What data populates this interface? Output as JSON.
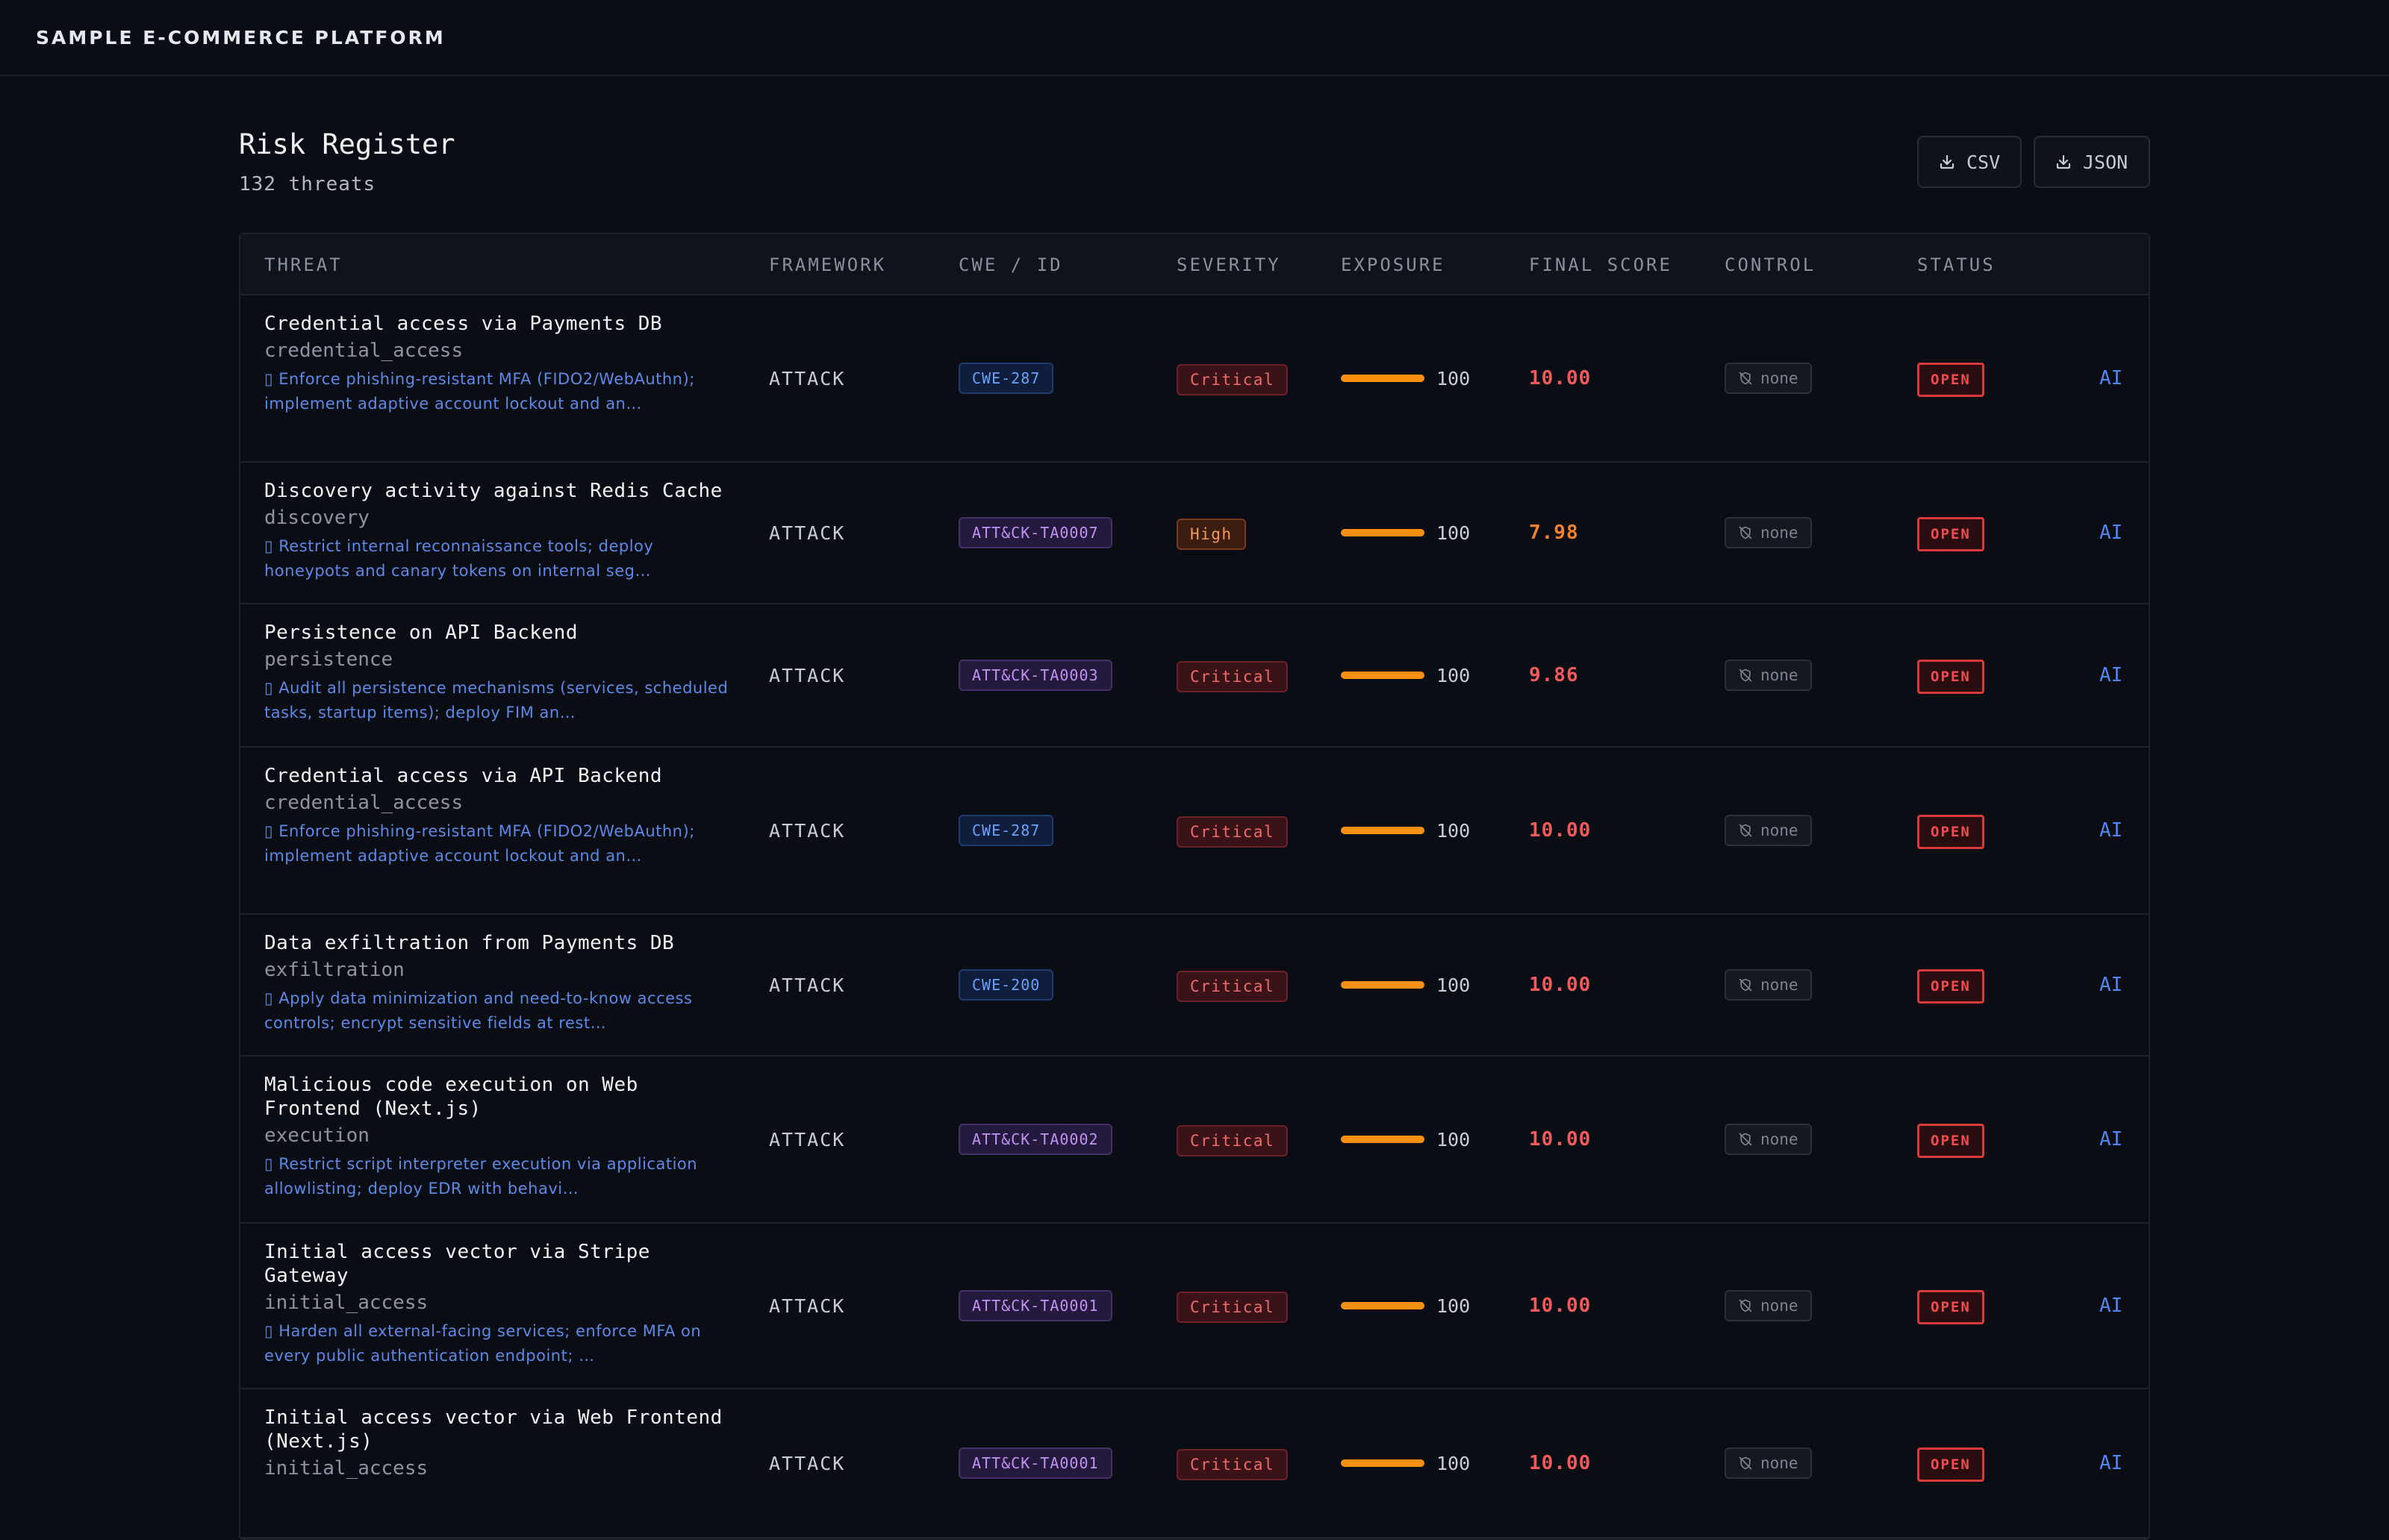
{
  "topbar": {
    "brand": "SAMPLE E-COMMERCE PLATFORM"
  },
  "page": {
    "title": "Risk Register",
    "subtitle": "132 threats"
  },
  "exports": {
    "csv_label": "CSV",
    "json_label": "JSON",
    "icon": "download-icon"
  },
  "columns": [
    "THREAT",
    "FRAMEWORK",
    "CWE / ID",
    "SEVERITY",
    "EXPOSURE",
    "FINAL SCORE",
    "CONTROL",
    "STATUS"
  ],
  "colors": {
    "accent": "#4f86f7",
    "critical": "#f05a5a",
    "high": "#f2812b",
    "exposure_bar": "#f8900f"
  },
  "rows": [
    {
      "name": "Credential access via Payments DB",
      "tactic": "credential_access",
      "mitigation": "▯ Enforce phishing-resistant MFA (FIDO2/WebAuthn); implement adaptive account lockout and an…",
      "framework": "ATTACK",
      "cwe": "CWE-287",
      "cwe_kind": "cwe",
      "severity": "Critical",
      "severity_level": "critical",
      "exposure": "100",
      "score": "10.00",
      "control": "none",
      "status": "OPEN",
      "ai": "AI"
    },
    {
      "name": "Discovery activity against Redis Cache",
      "tactic": "discovery",
      "mitigation": "▯ Restrict internal reconnaissance tools; deploy honeypots and canary tokens on internal seg…",
      "framework": "ATTACK",
      "cwe": "ATT&CK-TA0007",
      "cwe_kind": "att",
      "severity": "High",
      "severity_level": "high",
      "exposure": "100",
      "score": "7.98",
      "control": "none",
      "status": "OPEN",
      "ai": "AI"
    },
    {
      "name": "Persistence on API Backend",
      "tactic": "persistence",
      "mitigation": "▯ Audit all persistence mechanisms (services, scheduled tasks, startup items); deploy FIM an…",
      "framework": "ATTACK",
      "cwe": "ATT&CK-TA0003",
      "cwe_kind": "att",
      "severity": "Critical",
      "severity_level": "critical",
      "exposure": "100",
      "score": "9.86",
      "control": "none",
      "status": "OPEN",
      "ai": "AI"
    },
    {
      "name": "Credential access via API Backend",
      "tactic": "credential_access",
      "mitigation": "▯ Enforce phishing-resistant MFA (FIDO2/WebAuthn); implement adaptive account lockout and an…",
      "framework": "ATTACK",
      "cwe": "CWE-287",
      "cwe_kind": "cwe",
      "severity": "Critical",
      "severity_level": "critical",
      "exposure": "100",
      "score": "10.00",
      "control": "none",
      "status": "OPEN",
      "ai": "AI"
    },
    {
      "name": "Data exfiltration from Payments DB",
      "tactic": "exfiltration",
      "mitigation": "▯ Apply data minimization and need-to-know access controls; encrypt sensitive fields at rest…",
      "framework": "ATTACK",
      "cwe": "CWE-200",
      "cwe_kind": "cwe",
      "severity": "Critical",
      "severity_level": "critical",
      "exposure": "100",
      "score": "10.00",
      "control": "none",
      "status": "OPEN",
      "ai": "AI"
    },
    {
      "name": "Malicious code execution on Web Frontend (Next.js)",
      "tactic": "execution",
      "mitigation": "▯ Restrict script interpreter execution via application allowlisting; deploy EDR with behavi…",
      "framework": "ATTACK",
      "cwe": "ATT&CK-TA0002",
      "cwe_kind": "att",
      "severity": "Critical",
      "severity_level": "critical",
      "exposure": "100",
      "score": "10.00",
      "control": "none",
      "status": "OPEN",
      "ai": "AI"
    },
    {
      "name": "Initial access vector via Stripe Gateway",
      "tactic": "initial_access",
      "mitigation": "▯ Harden all external-facing services; enforce MFA on every public authentication endpoint; …",
      "framework": "ATTACK",
      "cwe": "ATT&CK-TA0001",
      "cwe_kind": "att",
      "severity": "Critical",
      "severity_level": "critical",
      "exposure": "100",
      "score": "10.00",
      "control": "none",
      "status": "OPEN",
      "ai": "AI"
    },
    {
      "name": "Initial access vector via Web Frontend (Next.js)",
      "tactic": "initial_access",
      "mitigation": "",
      "framework": "ATTACK",
      "cwe": "ATT&CK-TA0001",
      "cwe_kind": "att",
      "severity": "Critical",
      "severity_level": "critical",
      "exposure": "100",
      "score": "10.00",
      "control": "none",
      "status": "OPEN",
      "ai": "AI"
    }
  ]
}
